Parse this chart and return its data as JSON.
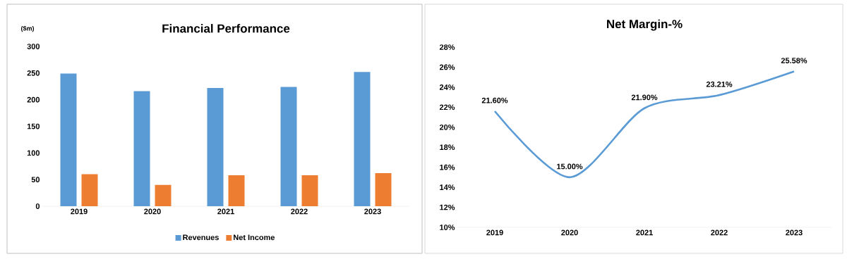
{
  "chart_data": [
    {
      "type": "bar",
      "title": "Financial Performance",
      "ylabel": "($m)",
      "categories": [
        "2019",
        "2020",
        "2021",
        "2022",
        "2023"
      ],
      "series": [
        {
          "name": "Revenues",
          "color": "#5b9bd5",
          "values": [
            249,
            216,
            222,
            224,
            252
          ]
        },
        {
          "name": "Net Income",
          "color": "#ed7d31",
          "values": [
            60,
            40,
            58,
            58,
            62
          ]
        }
      ],
      "ylim": [
        0,
        300
      ],
      "yticks": [
        0,
        50,
        100,
        150,
        200,
        250,
        300
      ],
      "legend": "bottom"
    },
    {
      "type": "line",
      "title": "Net Margin-%",
      "categories": [
        "2019",
        "2020",
        "2021",
        "2022",
        "2023"
      ],
      "series": [
        {
          "color": "#5b9bd5",
          "values": [
            21.6,
            15.0,
            21.9,
            23.21,
            25.58
          ],
          "value_labels": [
            "21.60%",
            "15.00%",
            "21.90%",
            "23.21%",
            "25.58%"
          ]
        }
      ],
      "ylim": [
        10,
        28
      ],
      "yticks": [
        {
          "value": 10,
          "label": "10%"
        },
        {
          "value": 12,
          "label": "12%"
        },
        {
          "value": 14,
          "label": "14%"
        },
        {
          "value": 16,
          "label": "16%"
        },
        {
          "value": 18,
          "label": "18%"
        },
        {
          "value": 20,
          "label": "20%"
        },
        {
          "value": 22,
          "label": "22%"
        },
        {
          "value": 24,
          "label": "24%"
        },
        {
          "value": 26,
          "label": "26%"
        },
        {
          "value": 28,
          "label": "28%"
        }
      ],
      "marker": "none",
      "line_style": "solid"
    }
  ]
}
